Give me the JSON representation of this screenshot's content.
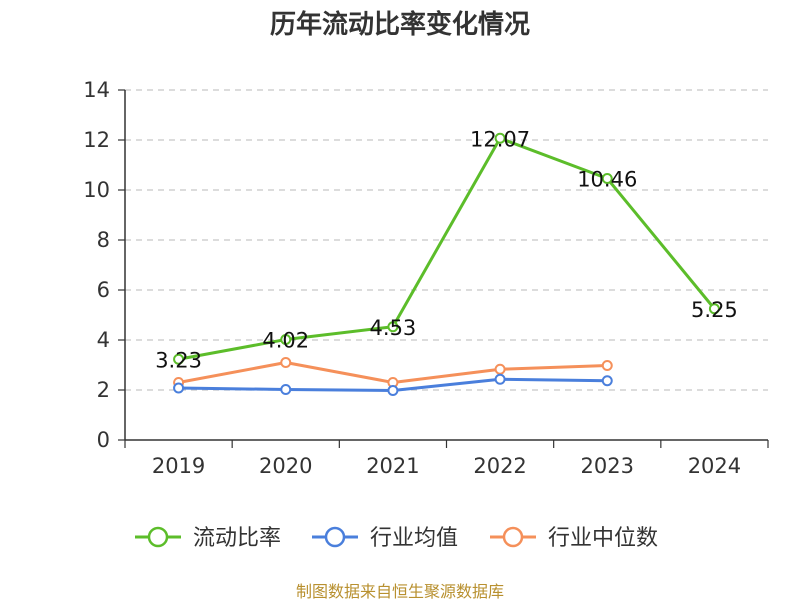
{
  "chart_data": {
    "type": "line",
    "title": "历年流动比率变化情况",
    "categories": [
      "2019",
      "2020",
      "2021",
      "2022",
      "2023",
      "2024"
    ],
    "ylim": [
      0,
      14
    ],
    "yticks": [
      0,
      2,
      4,
      6,
      8,
      10,
      12,
      14
    ],
    "grid": "horizontal-dashed",
    "legend_position": "bottom",
    "series": [
      {
        "name": "流动比率",
        "color": "#5cbd2a",
        "values": [
          3.23,
          4.02,
          4.53,
          12.07,
          10.46,
          5.25
        ],
        "labels": [
          "3.23",
          "4.02",
          "4.53",
          "12.07",
          "10.46",
          "5.25"
        ]
      },
      {
        "name": "行业均值",
        "color": "#4a7fdc",
        "values": [
          2.08,
          2.02,
          1.98,
          2.43,
          2.37,
          null
        ]
      },
      {
        "name": "行业中位数",
        "color": "#f5905a",
        "values": [
          2.3,
          3.1,
          2.3,
          2.83,
          2.98,
          null
        ]
      }
    ]
  },
  "footer": {
    "source": "制图数据来自恒生聚源数据库"
  }
}
